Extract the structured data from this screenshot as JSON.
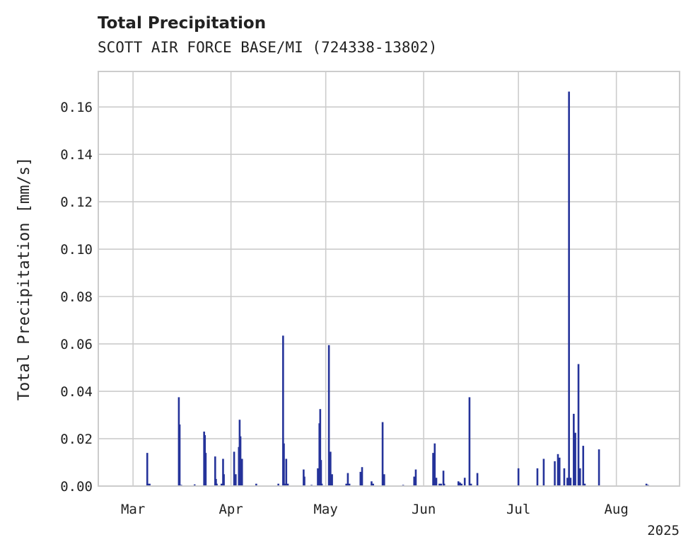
{
  "chart_data": {
    "type": "bar",
    "title": "Total Precipitation",
    "subtitle": "SCOTT AIR FORCE BASE/MI (724338-13802)",
    "ylabel": "Total Precipitation [mm/s]",
    "xlabel": "",
    "year_label": "2025",
    "ylim": [
      0,
      0.175
    ],
    "xlim": [
      "2025-02-18",
      "2025-08-21"
    ],
    "grid": true,
    "color": "#25339a",
    "y_ticks": [
      {
        "value": 0.0,
        "label": "0.00"
      },
      {
        "value": 0.02,
        "label": "0.02"
      },
      {
        "value": 0.04,
        "label": "0.04"
      },
      {
        "value": 0.06,
        "label": "0.06"
      },
      {
        "value": 0.08,
        "label": "0.08"
      },
      {
        "value": 0.1,
        "label": "0.10"
      },
      {
        "value": 0.12,
        "label": "0.12"
      },
      {
        "value": 0.14,
        "label": "0.14"
      },
      {
        "value": 0.16,
        "label": "0.16"
      }
    ],
    "x_ticks": [
      {
        "date": "2025-03-01",
        "label": "Mar"
      },
      {
        "date": "2025-04-01",
        "label": "Apr"
      },
      {
        "date": "2025-05-01",
        "label": "May"
      },
      {
        "date": "2025-06-01",
        "label": "Jun"
      },
      {
        "date": "2025-07-01",
        "label": "Jul"
      },
      {
        "date": "2025-08-01",
        "label": "Aug"
      }
    ],
    "x": [
      "2025-03-05T12:00",
      "2025-03-05T18:00",
      "2025-03-06T06:00",
      "2025-03-15T12:00",
      "2025-03-15T18:00",
      "2025-03-16T06:00",
      "2025-03-20T12:00",
      "2025-03-23T12:00",
      "2025-03-23T18:00",
      "2025-03-24T00:00",
      "2025-03-27T00:00",
      "2025-03-27T06:00",
      "2025-03-27T12:00",
      "2025-03-29T00:00",
      "2025-03-29T12:00",
      "2025-03-29T18:00",
      "2025-04-02T00:00",
      "2025-04-02T12:00",
      "2025-04-03T12:00",
      "2025-04-03T18:00",
      "2025-04-04T00:00",
      "2025-04-04T06:00",
      "2025-04-04T12:00",
      "2025-04-09T00:00",
      "2025-04-16T00:00",
      "2025-04-17T12:00",
      "2025-04-17T18:00",
      "2025-04-18T00:00",
      "2025-04-18T12:00",
      "2025-04-19T00:00",
      "2025-04-24T00:00",
      "2025-04-24T06:00",
      "2025-04-26T12:00",
      "2025-04-28T12:00",
      "2025-04-29T00:00",
      "2025-04-29T06:00",
      "2025-04-29T12:00",
      "2025-04-29T18:00",
      "2025-05-02T00:00",
      "2025-05-02T12:00",
      "2025-05-03T00:00",
      "2025-05-07T12:00",
      "2025-05-08T00:00",
      "2025-05-08T12:00",
      "2025-05-12T00:00",
      "2025-05-12T12:00",
      "2025-05-15T12:00",
      "2025-05-16T00:00",
      "2025-05-19T00:00",
      "2025-05-19T12:00",
      "2025-05-25T12:00",
      "2025-05-29T00:00",
      "2025-05-29T12:00",
      "2025-06-04T00:00",
      "2025-06-04T12:00",
      "2025-06-05T00:00",
      "2025-06-06T00:00",
      "2025-06-06T12:00",
      "2025-06-07T06:00",
      "2025-06-07T12:00",
      "2025-06-12T00:00",
      "2025-06-12T12:00",
      "2025-06-13T00:00",
      "2025-06-14T00:00",
      "2025-06-15T12:00",
      "2025-06-16T00:00",
      "2025-06-18T00:00",
      "2025-07-01T00:00",
      "2025-07-07T00:00",
      "2025-07-09T00:00",
      "2025-07-12T12:00",
      "2025-07-13T12:00",
      "2025-07-14T00:00",
      "2025-07-15T12:00",
      "2025-07-16T12:00",
      "2025-07-17T00:00",
      "2025-07-17T12:00",
      "2025-07-18T12:00",
      "2025-07-19T00:00",
      "2025-07-20T00:00",
      "2025-07-20T12:00",
      "2025-07-21T12:00",
      "2025-07-22T00:00",
      "2025-07-26T12:00",
      "2025-08-10T12:00",
      "2025-08-11T00:00"
    ],
    "series": [
      {
        "values": [
          0.014,
          0.001,
          0.001,
          0.0375,
          0.026,
          0.0005,
          0.0007,
          0.023,
          0.0215,
          0.014,
          0.0125,
          0.003,
          0.001,
          0.001,
          0.0115,
          0.005,
          0.0145,
          0.005,
          0.0165,
          0.028,
          0.021,
          0.009,
          0.0115,
          0.001,
          0.001,
          0.0635,
          0.018,
          0.001,
          0.0115,
          0.001,
          0.007,
          0.004,
          0.0005,
          0.0075,
          0.0265,
          0.0325,
          0.011,
          0.001,
          0.0595,
          0.0145,
          0.005,
          0.001,
          0.0055,
          0.001,
          0.006,
          0.008,
          0.002,
          0.001,
          0.027,
          0.005,
          0.0005,
          0.004,
          0.007,
          0.014,
          0.018,
          0.0035,
          0.001,
          0.001,
          0.0065,
          0.001,
          0.002,
          0.0015,
          0.001,
          0.0035,
          0.0375,
          0.001,
          0.0055,
          0.0075,
          0.0075,
          0.0115,
          0.0105,
          0.0135,
          0.012,
          0.0075,
          0.0035,
          0.1665,
          0.0035,
          0.0305,
          0.0225,
          0.0515,
          0.0075,
          0.017,
          0.001,
          0.0155,
          0.001,
          0.0005
        ]
      }
    ]
  }
}
